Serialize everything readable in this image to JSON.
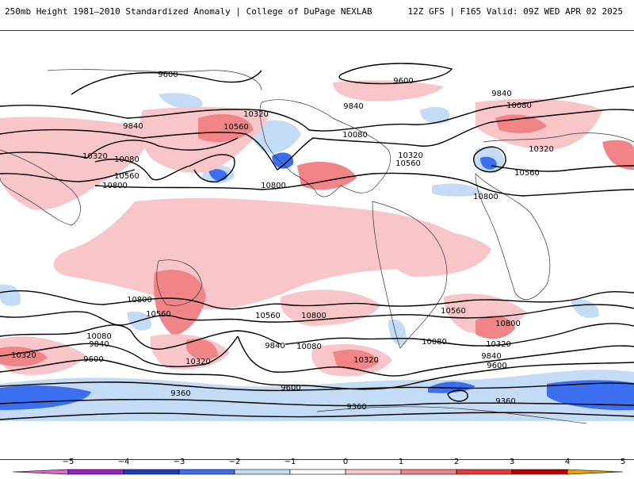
{
  "header": {
    "title": "250mb Height 1981–2010 Standardized Anomaly | College of DuPage NEXLAB",
    "run_info": "12Z GFS | F165 Valid: 09Z WED APR 02 2025"
  },
  "map": {
    "contour_labels": [
      {
        "id": "c1",
        "text": "9600"
      },
      {
        "id": "c2",
        "text": "9600"
      },
      {
        "id": "c3",
        "text": "9840"
      },
      {
        "id": "c4",
        "text": "9840"
      },
      {
        "id": "c5",
        "text": "10080"
      },
      {
        "id": "c6",
        "text": "9840"
      },
      {
        "id": "c7",
        "text": "10320"
      },
      {
        "id": "c8",
        "text": "10560"
      },
      {
        "id": "c9",
        "text": "10320"
      },
      {
        "id": "c10",
        "text": "10080"
      },
      {
        "id": "c11",
        "text": "10560"
      },
      {
        "id": "c12",
        "text": "10800"
      },
      {
        "id": "c13",
        "text": "10080"
      },
      {
        "id": "c14",
        "text": "10320"
      },
      {
        "id": "c15",
        "text": "10560"
      },
      {
        "id": "c16",
        "text": "10800"
      },
      {
        "id": "c17",
        "text": "10320"
      },
      {
        "id": "c18",
        "text": "10560"
      },
      {
        "id": "c19",
        "text": "10800"
      },
      {
        "id": "c20",
        "text": "10800"
      },
      {
        "id": "c21",
        "text": "10560"
      },
      {
        "id": "c22",
        "text": "10560"
      },
      {
        "id": "c23",
        "text": "10800"
      },
      {
        "id": "c24",
        "text": "10560"
      },
      {
        "id": "c25",
        "text": "10800"
      },
      {
        "id": "c26",
        "text": "10320"
      },
      {
        "id": "c27",
        "text": "10080"
      },
      {
        "id": "c28",
        "text": "9840"
      },
      {
        "id": "c29",
        "text": "9600"
      },
      {
        "id": "c30",
        "text": "10320"
      },
      {
        "id": "c31",
        "text": "9840"
      },
      {
        "id": "c32",
        "text": "10080"
      },
      {
        "id": "c33",
        "text": "10320"
      },
      {
        "id": "c34",
        "text": "10080"
      },
      {
        "id": "c35",
        "text": "10320"
      },
      {
        "id": "c36",
        "text": "9840"
      },
      {
        "id": "c37",
        "text": "9600"
      },
      {
        "id": "c38",
        "text": "9600"
      },
      {
        "id": "c39",
        "text": "9360"
      },
      {
        "id": "c40",
        "text": "9360"
      },
      {
        "id": "c41",
        "text": "9360"
      }
    ]
  },
  "colorbar": {
    "ticks": [
      "−5",
      "−4",
      "−3",
      "−2",
      "−1",
      "0",
      "1",
      "2",
      "3",
      "4",
      "5"
    ],
    "colors": [
      "#e066d8",
      "#9a21c6",
      "#1e3fb8",
      "#3c6ef0",
      "#c4dbf5",
      "#ffffff",
      "#f8c6c8",
      "#f08486",
      "#e23c3c",
      "#b80000",
      "#f0a000"
    ]
  }
}
